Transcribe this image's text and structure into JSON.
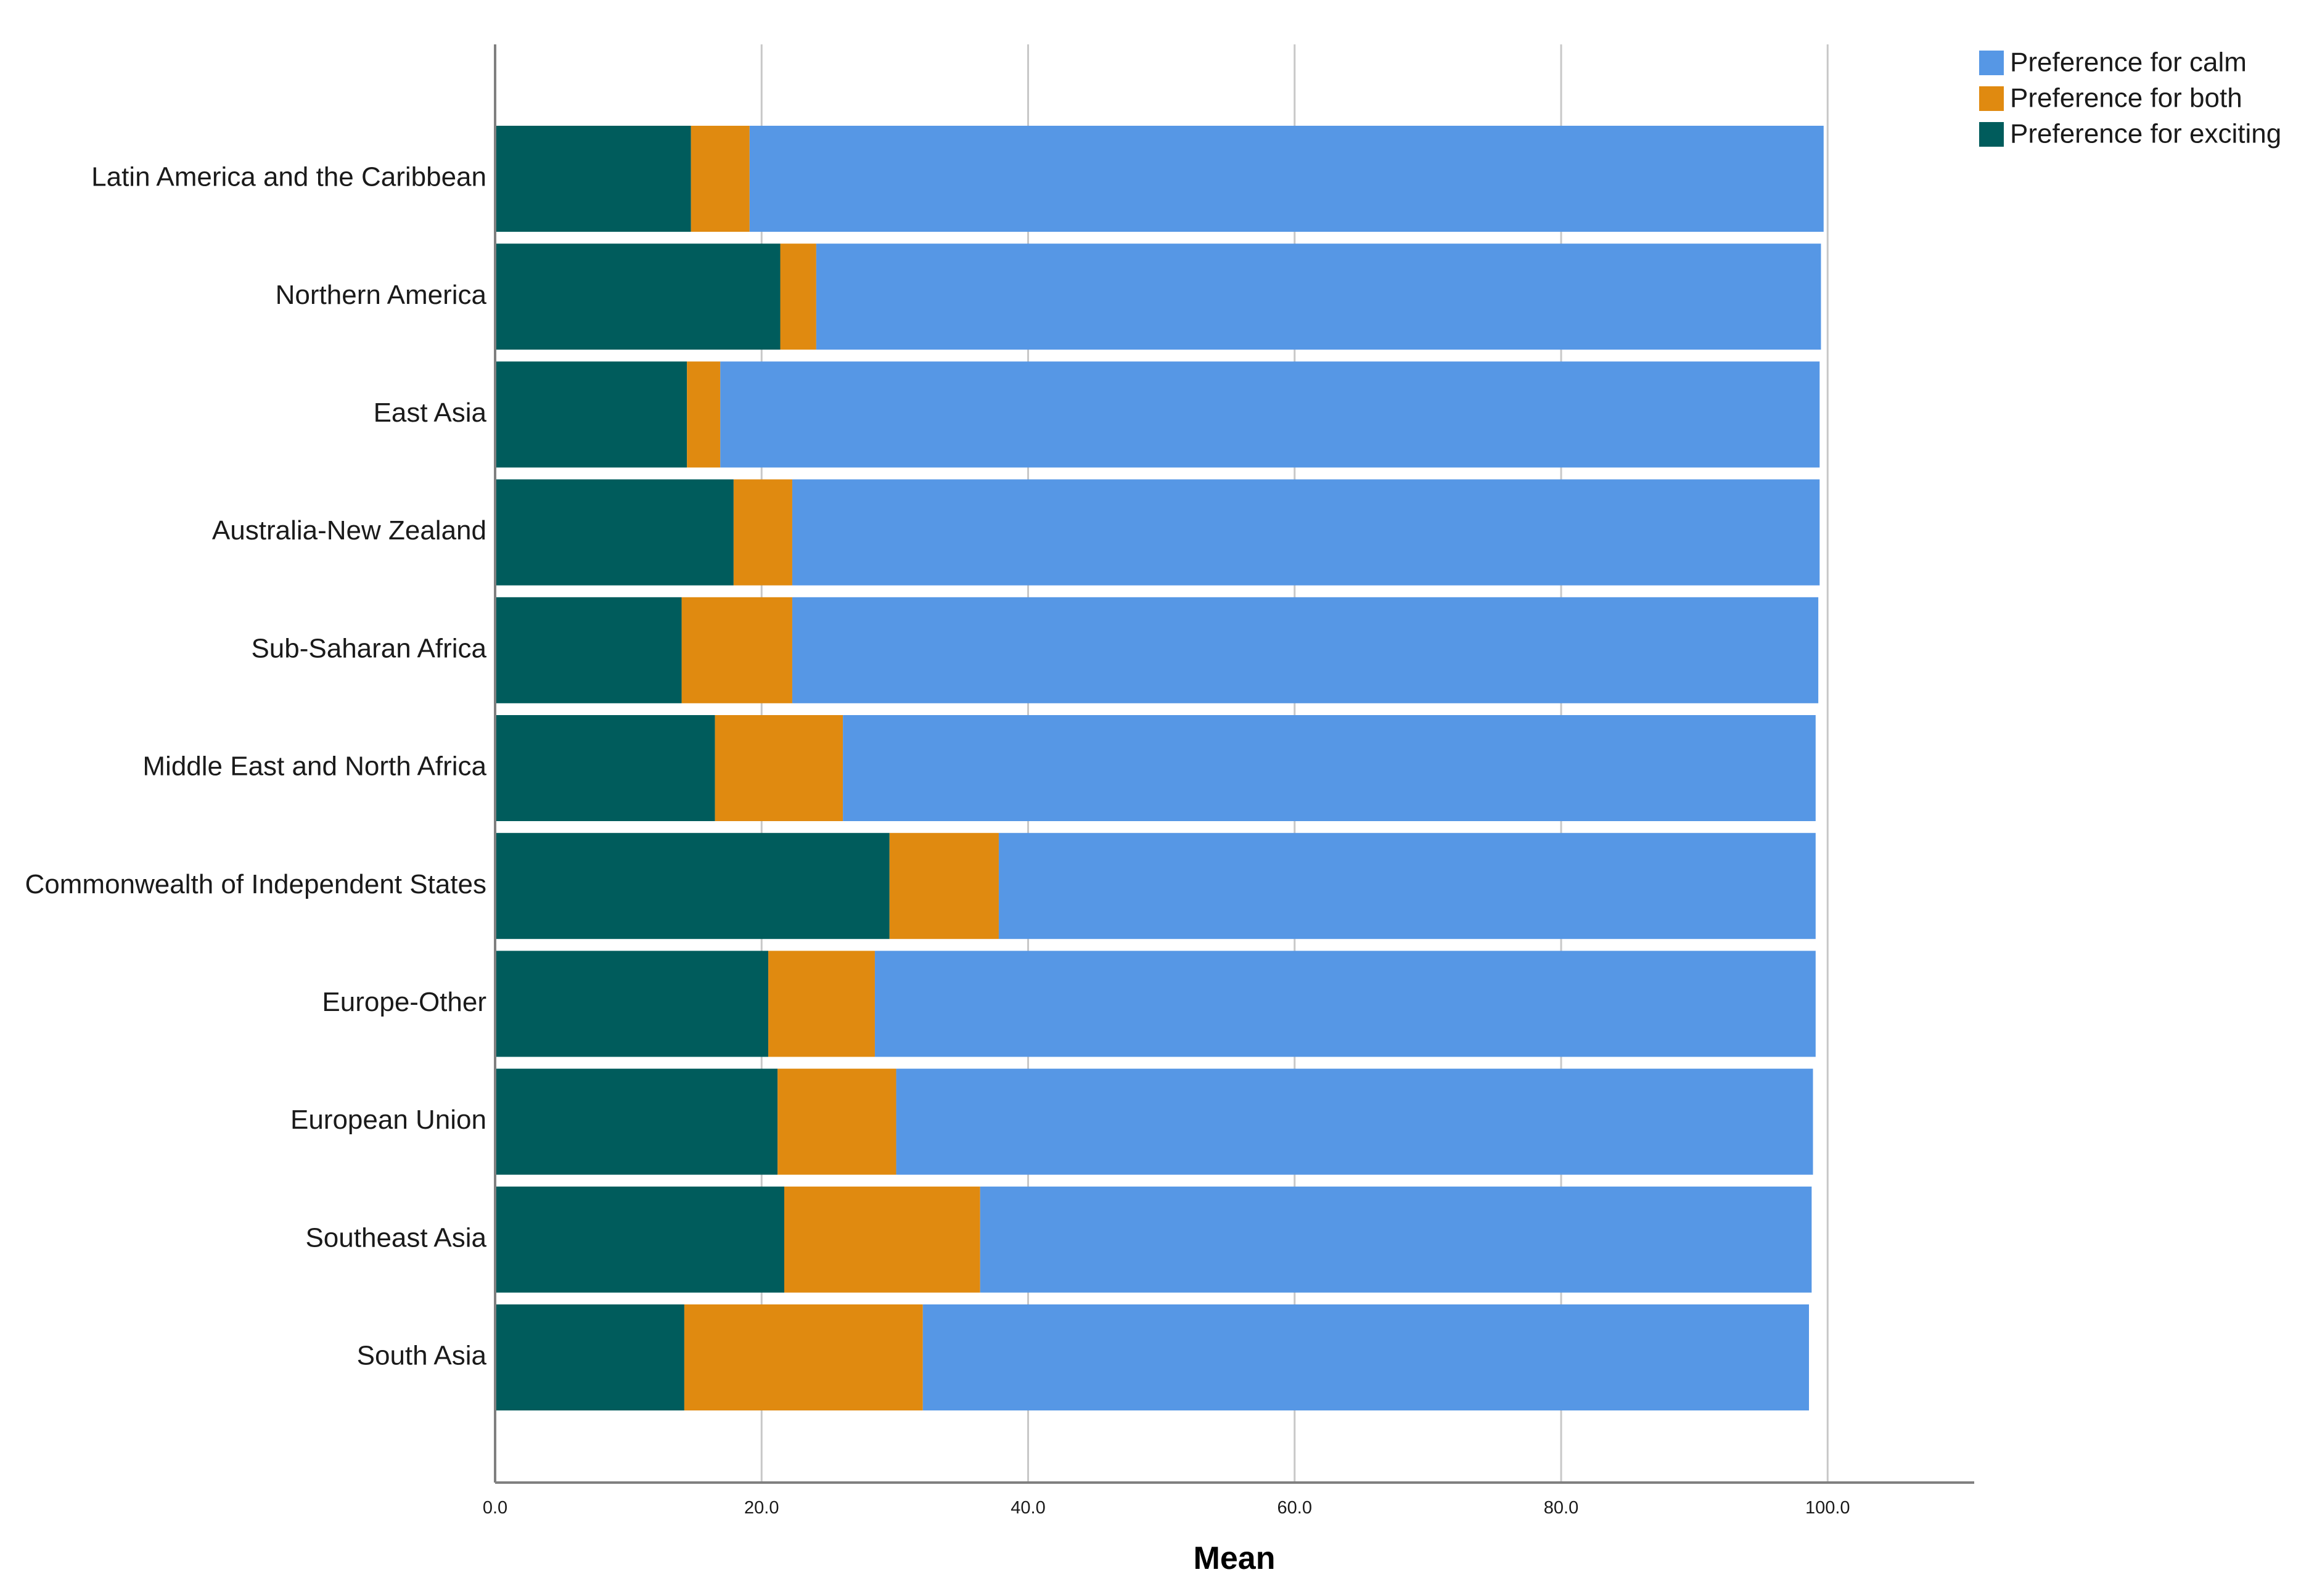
{
  "chart_data": {
    "type": "bar",
    "orientation": "horizontal",
    "stacked": true,
    "xlabel": "Mean",
    "ylabel": "",
    "xlim": [
      0,
      111
    ],
    "x_ticks": [
      "0.0",
      "20.0",
      "40.0",
      "60.0",
      "80.0",
      "100.0"
    ],
    "grid": true,
    "legend_position": "top-right",
    "categories": [
      "Latin America and the Caribbean",
      "Northern America",
      "East Asia",
      "Australia-New Zealand",
      "Sub-Saharan Africa",
      "Middle East and North Africa",
      "Commonwealth of Independent States",
      "Europe-Other",
      "European Union",
      "Southeast Asia",
      "South Asia"
    ],
    "series": [
      {
        "name": "Preference for exciting",
        "color": "#005c5c",
        "values": [
          14.7,
          21.4,
          14.4,
          17.9,
          14.0,
          16.5,
          29.6,
          20.5,
          21.2,
          21.7,
          14.2
        ]
      },
      {
        "name": "Preference for both",
        "color": "#e08a10",
        "values": [
          4.4,
          2.7,
          2.5,
          4.4,
          8.3,
          9.6,
          8.2,
          8.0,
          8.9,
          14.7,
          17.9
        ]
      },
      {
        "name": "Preference for calm",
        "color": "#5697e5",
        "values": [
          80.6,
          75.4,
          82.5,
          77.1,
          77.0,
          73.0,
          61.3,
          70.6,
          68.8,
          62.4,
          66.5
        ]
      }
    ],
    "legend": [
      {
        "name": "Preference for calm",
        "color": "#5697e5"
      },
      {
        "name": "Preference for both",
        "color": "#e08a10"
      },
      {
        "name": "Preference for exciting",
        "color": "#005c5c"
      }
    ]
  }
}
